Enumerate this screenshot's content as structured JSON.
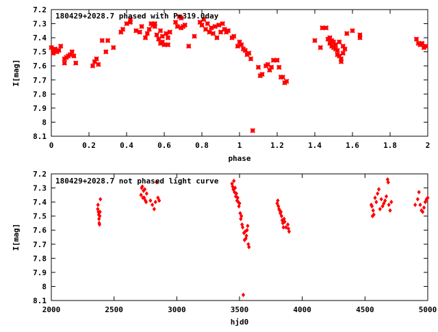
{
  "chart_data": [
    {
      "type": "scatter",
      "title": "180429+2028.7 phased with P=319.0day",
      "xlabel": "phase",
      "ylabel": "I[mag]",
      "xlim": [
        0,
        2
      ],
      "ylim": [
        8.1,
        7.2
      ],
      "y_inverted": true,
      "marker": "cross",
      "color": "#ff0000",
      "xticks": [
        "0",
        "0.2",
        "0.4",
        "0.6",
        "0.8",
        "1",
        "1.2",
        "1.4",
        "1.6",
        "1.8",
        "2"
      ],
      "yticks": [
        "7.2",
        "7.3",
        "7.4",
        "7.5",
        "7.6",
        "7.7",
        "7.8",
        "7.9",
        "8",
        "8.1"
      ],
      "points": [
        [
          0.0,
          7.47
        ],
        [
          0.01,
          7.49
        ],
        [
          0.01,
          7.51
        ],
        [
          0.02,
          7.48
        ],
        [
          0.03,
          7.5
        ],
        [
          0.04,
          7.49
        ],
        [
          0.05,
          7.46
        ],
        [
          0.07,
          7.58
        ],
        [
          0.07,
          7.55
        ],
        [
          0.08,
          7.54
        ],
        [
          0.09,
          7.53
        ],
        [
          0.1,
          7.52
        ],
        [
          0.11,
          7.5
        ],
        [
          0.12,
          7.53
        ],
        [
          0.13,
          7.58
        ],
        [
          0.22,
          7.6
        ],
        [
          0.23,
          7.57
        ],
        [
          0.24,
          7.55
        ],
        [
          0.25,
          7.59
        ],
        [
          0.27,
          7.42
        ],
        [
          0.29,
          7.5
        ],
        [
          0.3,
          7.42
        ],
        [
          0.33,
          7.47
        ],
        [
          0.37,
          7.36
        ],
        [
          0.38,
          7.34
        ],
        [
          0.4,
          7.3
        ],
        [
          0.42,
          7.27
        ],
        [
          0.42,
          7.29
        ],
        [
          0.45,
          7.35
        ],
        [
          0.47,
          7.36
        ],
        [
          0.48,
          7.32
        ],
        [
          0.5,
          7.4
        ],
        [
          0.51,
          7.37
        ],
        [
          0.52,
          7.34
        ],
        [
          0.53,
          7.3
        ],
        [
          0.54,
          7.31
        ],
        [
          0.55,
          7.3
        ],
        [
          0.55,
          7.32
        ],
        [
          0.56,
          7.38
        ],
        [
          0.57,
          7.41
        ],
        [
          0.58,
          7.35
        ],
        [
          0.58,
          7.44
        ],
        [
          0.59,
          7.39
        ],
        [
          0.59,
          7.43
        ],
        [
          0.6,
          7.45
        ],
        [
          0.61,
          7.37
        ],
        [
          0.62,
          7.4
        ],
        [
          0.62,
          7.45
        ],
        [
          0.63,
          7.36
        ],
        [
          0.66,
          7.29
        ],
        [
          0.67,
          7.32
        ],
        [
          0.68,
          7.25
        ],
        [
          0.69,
          7.33
        ],
        [
          0.69,
          7.26
        ],
        [
          0.7,
          7.32
        ],
        [
          0.71,
          7.31
        ],
        [
          0.73,
          7.46
        ],
        [
          0.76,
          7.39
        ],
        [
          0.79,
          7.29
        ],
        [
          0.8,
          7.31
        ],
        [
          0.81,
          7.27
        ],
        [
          0.82,
          7.34
        ],
        [
          0.83,
          7.3
        ],
        [
          0.84,
          7.36
        ],
        [
          0.85,
          7.33
        ],
        [
          0.86,
          7.37
        ],
        [
          0.87,
          7.32
        ],
        [
          0.88,
          7.4
        ],
        [
          0.89,
          7.31
        ],
        [
          0.9,
          7.36
        ],
        [
          0.91,
          7.3
        ],
        [
          0.92,
          7.34
        ],
        [
          0.93,
          7.36
        ],
        [
          0.94,
          7.35
        ],
        [
          0.96,
          7.4
        ],
        [
          0.97,
          7.39
        ],
        [
          0.99,
          7.46
        ],
        [
          1.0,
          7.43
        ],
        [
          1.01,
          7.45
        ],
        [
          1.02,
          7.48
        ],
        [
          1.03,
          7.49
        ],
        [
          1.04,
          7.52
        ],
        [
          1.05,
          7.51
        ],
        [
          1.06,
          7.55
        ],
        [
          1.07,
          8.06
        ],
        [
          1.1,
          7.61
        ],
        [
          1.11,
          7.67
        ],
        [
          1.12,
          7.66
        ],
        [
          1.14,
          7.6
        ],
        [
          1.15,
          7.59
        ],
        [
          1.16,
          7.63
        ],
        [
          1.17,
          7.61
        ],
        [
          1.18,
          7.56
        ],
        [
          1.2,
          7.56
        ],
        [
          1.21,
          7.61
        ],
        [
          1.22,
          7.68
        ],
        [
          1.23,
          7.68
        ],
        [
          1.24,
          7.72
        ],
        [
          1.25,
          7.71
        ],
        [
          1.4,
          7.42
        ],
        [
          1.43,
          7.47
        ],
        [
          1.44,
          7.33
        ],
        [
          1.46,
          7.33
        ],
        [
          1.47,
          7.41
        ],
        [
          1.48,
          7.44
        ],
        [
          1.48,
          7.4
        ],
        [
          1.49,
          7.46
        ],
        [
          1.49,
          7.42
        ],
        [
          1.5,
          7.47
        ],
        [
          1.5,
          7.43
        ],
        [
          1.51,
          7.48
        ],
        [
          1.51,
          7.45
        ],
        [
          1.52,
          7.52
        ],
        [
          1.52,
          7.49
        ],
        [
          1.53,
          7.53
        ],
        [
          1.53,
          7.43
        ],
        [
          1.54,
          7.55
        ],
        [
          1.54,
          7.57
        ],
        [
          1.55,
          7.51
        ],
        [
          1.55,
          7.46
        ],
        [
          1.56,
          7.48
        ],
        [
          1.57,
          7.37
        ],
        [
          1.6,
          7.35
        ],
        [
          1.64,
          7.38
        ],
        [
          1.64,
          7.4
        ],
        [
          1.94,
          7.41
        ],
        [
          1.95,
          7.44
        ],
        [
          1.96,
          7.45
        ],
        [
          1.97,
          7.44
        ],
        [
          1.98,
          7.47
        ],
        [
          1.99,
          7.46
        ]
      ]
    },
    {
      "type": "scatter",
      "title": "180429+2028.7 not phased light curve",
      "xlabel": "hjd0",
      "ylabel": "I[mag]",
      "xlim": [
        2000,
        5000
      ],
      "ylim": [
        8.1,
        7.2
      ],
      "y_inverted": true,
      "marker": "diamond",
      "color": "#ff0000",
      "xticks": [
        "2000",
        "2500",
        "3000",
        "3500",
        "4000",
        "4500",
        "5000"
      ],
      "yticks": [
        "7.2",
        "7.3",
        "7.4",
        "7.5",
        "7.6",
        "7.7",
        "7.8",
        "7.9",
        "8",
        "8.1"
      ],
      "points": [
        [
          2370,
          7.45
        ],
        [
          2372,
          7.42
        ],
        [
          2375,
          7.47
        ],
        [
          2378,
          7.49
        ],
        [
          2380,
          7.52
        ],
        [
          2382,
          7.55
        ],
        [
          2384,
          7.56
        ],
        [
          2386,
          7.5
        ],
        [
          2388,
          7.47
        ],
        [
          2391,
          7.38
        ],
        [
          2715,
          7.35
        ],
        [
          2720,
          7.3
        ],
        [
          2725,
          7.29
        ],
        [
          2730,
          7.37
        ],
        [
          2735,
          7.32
        ],
        [
          2740,
          7.37
        ],
        [
          2745,
          7.31
        ],
        [
          2750,
          7.39
        ],
        [
          2755,
          7.4
        ],
        [
          2760,
          7.34
        ],
        [
          2790,
          7.39
        ],
        [
          2805,
          7.42
        ],
        [
          2820,
          7.45
        ],
        [
          2830,
          7.4
        ],
        [
          2840,
          7.26
        ],
        [
          2850,
          7.37
        ],
        [
          2860,
          7.39
        ],
        [
          3440,
          7.27
        ],
        [
          3445,
          7.29
        ],
        [
          3450,
          7.31
        ],
        [
          3455,
          7.25
        ],
        [
          3460,
          7.33
        ],
        [
          3465,
          7.3
        ],
        [
          3470,
          7.36
        ],
        [
          3475,
          7.34
        ],
        [
          3480,
          7.39
        ],
        [
          3485,
          7.37
        ],
        [
          3490,
          7.4
        ],
        [
          3495,
          7.43
        ],
        [
          3500,
          7.41
        ],
        [
          3505,
          7.48
        ],
        [
          3510,
          7.52
        ],
        [
          3515,
          7.5
        ],
        [
          3520,
          7.56
        ],
        [
          3525,
          7.58
        ],
        [
          3530,
          8.06
        ],
        [
          3535,
          7.62
        ],
        [
          3540,
          7.67
        ],
        [
          3545,
          7.61
        ],
        [
          3550,
          7.66
        ],
        [
          3555,
          7.64
        ],
        [
          3560,
          7.6
        ],
        [
          3565,
          7.57
        ],
        [
          3570,
          7.7
        ],
        [
          3575,
          7.72
        ],
        [
          3800,
          7.41
        ],
        [
          3805,
          7.39
        ],
        [
          3810,
          7.43
        ],
        [
          3815,
          7.45
        ],
        [
          3820,
          7.46
        ],
        [
          3825,
          7.48
        ],
        [
          3830,
          7.47
        ],
        [
          3835,
          7.5
        ],
        [
          3840,
          7.53
        ],
        [
          3845,
          7.55
        ],
        [
          3850,
          7.58
        ],
        [
          3855,
          7.52
        ],
        [
          3860,
          7.54
        ],
        [
          3870,
          7.58
        ],
        [
          3885,
          7.56
        ],
        [
          3890,
          7.59
        ],
        [
          3895,
          7.61
        ],
        [
          4550,
          7.42
        ],
        [
          4555,
          7.43
        ],
        [
          4560,
          7.5
        ],
        [
          4565,
          7.46
        ],
        [
          4570,
          7.49
        ],
        [
          4580,
          7.37
        ],
        [
          4590,
          7.4
        ],
        [
          4600,
          7.34
        ],
        [
          4610,
          7.31
        ],
        [
          4620,
          7.45
        ],
        [
          4630,
          7.38
        ],
        [
          4640,
          7.43
        ],
        [
          4650,
          7.41
        ],
        [
          4660,
          7.39
        ],
        [
          4670,
          7.36
        ],
        [
          4680,
          7.24
        ],
        [
          4685,
          7.26
        ],
        [
          4690,
          7.42
        ],
        [
          4700,
          7.46
        ],
        [
          4710,
          7.4
        ],
        [
          4900,
          7.42
        ],
        [
          4920,
          7.38
        ],
        [
          4930,
          7.33
        ],
        [
          4940,
          7.42
        ],
        [
          4950,
          7.46
        ],
        [
          4960,
          7.47
        ],
        [
          4970,
          7.44
        ],
        [
          4980,
          7.4
        ],
        [
          4990,
          7.38
        ],
        [
          5000,
          7.37
        ]
      ]
    }
  ]
}
